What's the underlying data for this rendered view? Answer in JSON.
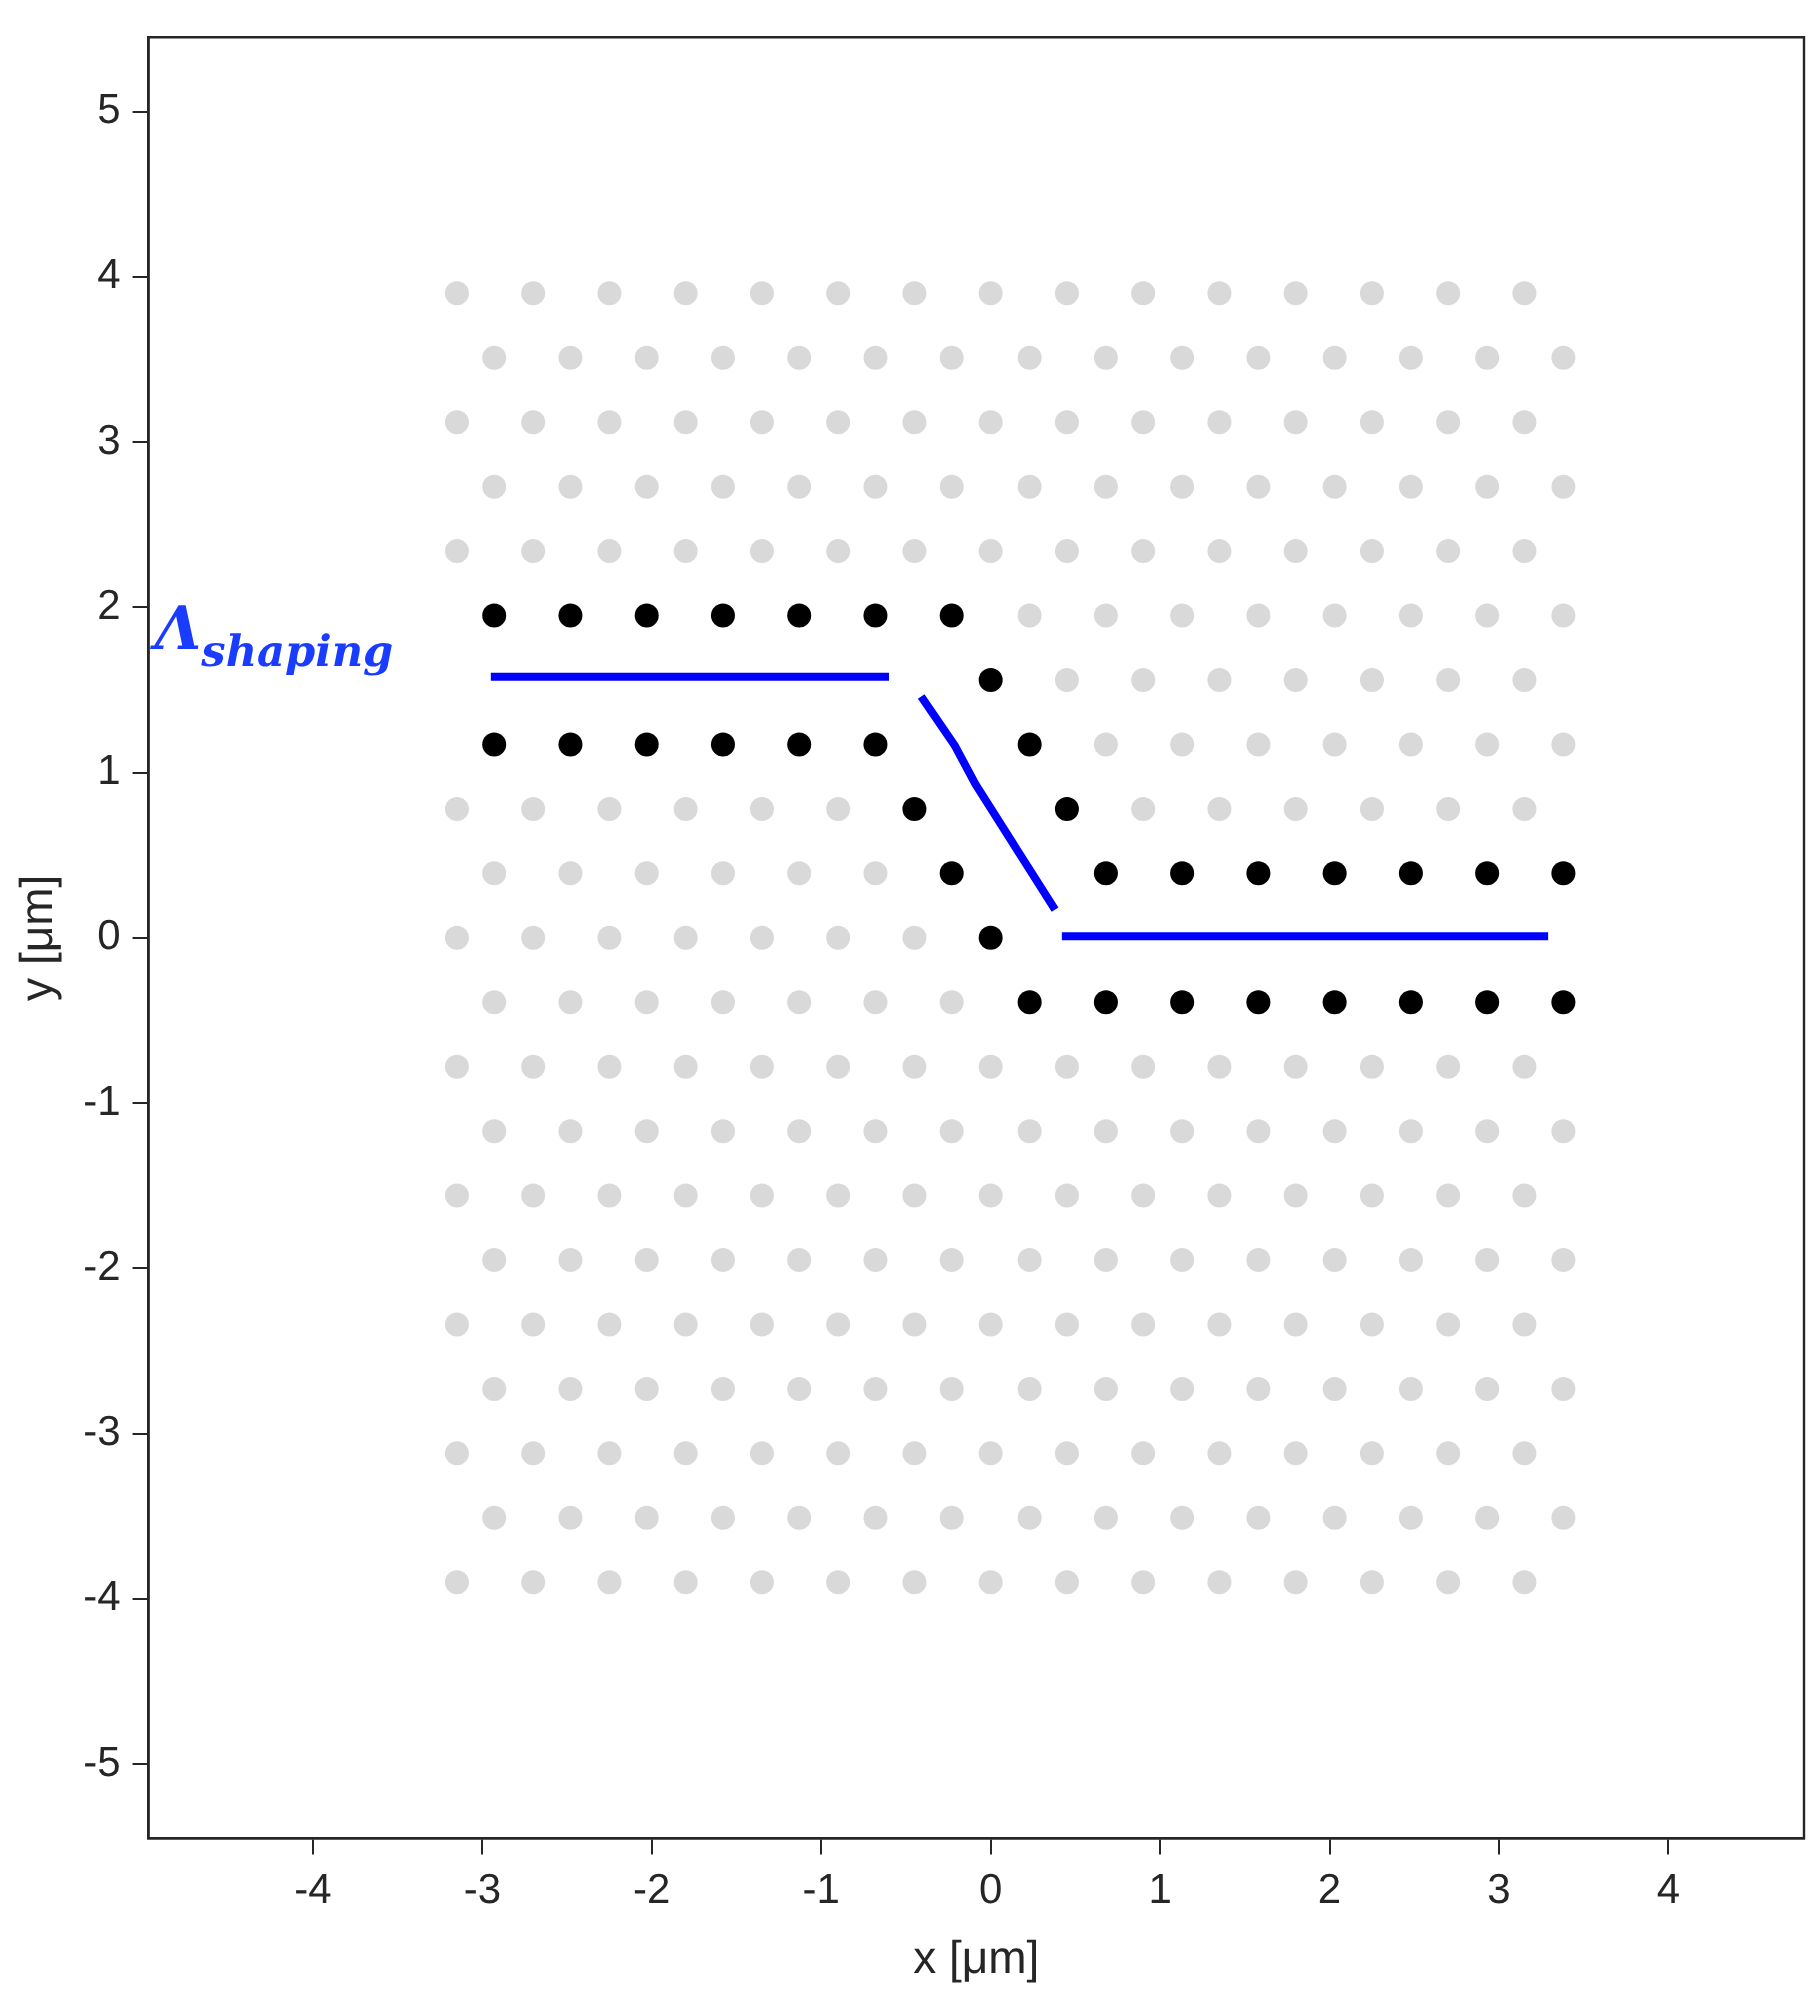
{
  "chart_data": {
    "type": "scatter",
    "xlabel": "x [μm]",
    "ylabel": "y [μm]",
    "xlim": [
      -4.97,
      4.8
    ],
    "ylim": [
      -5.45,
      5.45
    ],
    "xticks": [
      -4,
      -3,
      -2,
      -1,
      0,
      1,
      2,
      3,
      4
    ],
    "yticks": [
      -5,
      -4,
      -3,
      -2,
      -1,
      0,
      1,
      2,
      3,
      4,
      5
    ],
    "grid": false,
    "legend": false,
    "marker": "circle",
    "annotations": [
      "Λ$_{shaping}$"
    ],
    "series": [
      {
        "color": "#d9d9d9",
        "x": [
          -3.15,
          -2.7,
          -2.25,
          -1.8,
          -1.35,
          -0.9,
          -0.45,
          0,
          0.45,
          0.9,
          1.35,
          1.8,
          2.25,
          2.7,
          3.15
        ],
        "values": [
          3.9,
          3.9,
          3.9,
          3.9,
          3.9,
          3.9,
          3.9,
          3.9,
          3.9,
          3.9,
          3.9,
          3.9,
          3.9,
          3.9,
          3.9
        ]
      },
      {
        "color": "#d9d9d9",
        "x": [
          -2.93,
          -2.48,
          -2.03,
          -1.58,
          -1.13,
          -0.68,
          -0.23,
          0.23,
          0.68,
          1.13,
          1.58,
          2.03,
          2.48,
          2.93,
          3.38
        ],
        "values": [
          3.51,
          3.51,
          3.51,
          3.51,
          3.51,
          3.51,
          3.51,
          3.51,
          3.51,
          3.51,
          3.51,
          3.51,
          3.51,
          3.51,
          3.51
        ]
      },
      {
        "color": "#d9d9d9",
        "x": [
          -3.15,
          -2.7,
          -2.25,
          -1.8,
          -1.35,
          -0.9,
          -0.45,
          0,
          0.45,
          0.9,
          1.35,
          1.8,
          2.25,
          2.7,
          3.15
        ],
        "values": [
          3.12,
          3.12,
          3.12,
          3.12,
          3.12,
          3.12,
          3.12,
          3.12,
          3.12,
          3.12,
          3.12,
          3.12,
          3.12,
          3.12,
          3.12
        ]
      },
      {
        "color": "#d9d9d9",
        "x": [
          -2.93,
          -2.48,
          -2.03,
          -1.58,
          -1.13,
          -0.68,
          -0.23,
          0.23,
          0.68,
          1.13,
          1.58,
          2.03,
          2.48,
          2.93,
          3.38
        ],
        "values": [
          2.73,
          2.73,
          2.73,
          2.73,
          2.73,
          2.73,
          2.73,
          2.73,
          2.73,
          2.73,
          2.73,
          2.73,
          2.73,
          2.73,
          2.73
        ]
      },
      {
        "color": "#d9d9d9",
        "x": [
          -3.15,
          -2.7,
          -2.25,
          -1.8,
          -1.35,
          -0.9,
          -0.45,
          0,
          0.45,
          0.9,
          1.35,
          1.8,
          2.25,
          2.7,
          3.15
        ],
        "values": [
          2.34,
          2.34,
          2.34,
          2.34,
          2.34,
          2.34,
          2.34,
          2.34,
          2.34,
          2.34,
          2.34,
          2.34,
          2.34,
          2.34,
          2.34
        ]
      },
      {
        "color": "#d9d9d9",
        "x": [
          0.23,
          0.68,
          1.13,
          1.58,
          2.03,
          2.48,
          2.93,
          3.38
        ],
        "values": [
          1.95,
          1.95,
          1.95,
          1.95,
          1.95,
          1.95,
          1.95,
          1.95
        ]
      },
      {
        "color": "#d9d9d9",
        "x": [
          0.45,
          0.9,
          1.35,
          1.8,
          2.25,
          2.7,
          3.15
        ],
        "values": [
          1.56,
          1.56,
          1.56,
          1.56,
          1.56,
          1.56,
          1.56
        ]
      },
      {
        "color": "#d9d9d9",
        "x": [
          0.68,
          1.13,
          1.58,
          2.03,
          2.48,
          2.93,
          3.38
        ],
        "values": [
          1.17,
          1.17,
          1.17,
          1.17,
          1.17,
          1.17,
          1.17
        ]
      },
      {
        "color": "#d9d9d9",
        "x": [
          -3.15,
          -2.7,
          -2.25,
          -1.8,
          -1.35,
          -0.9,
          0.9,
          1.35,
          1.8,
          2.25,
          2.7,
          3.15
        ],
        "values": [
          0.78,
          0.78,
          0.78,
          0.78,
          0.78,
          0.78,
          0.78,
          0.78,
          0.78,
          0.78,
          0.78,
          0.78
        ]
      },
      {
        "color": "#d9d9d9",
        "x": [
          -2.93,
          -2.48,
          -2.03,
          -1.58,
          -1.13,
          -0.68
        ],
        "values": [
          0.39,
          0.39,
          0.39,
          0.39,
          0.39,
          0.39
        ]
      },
      {
        "color": "#d9d9d9",
        "x": [
          -3.15,
          -2.7,
          -2.25,
          -1.8,
          -1.35,
          -0.9,
          -0.45
        ],
        "values": [
          0,
          0,
          0,
          0,
          0,
          0,
          0
        ]
      },
      {
        "color": "#d9d9d9",
        "x": [
          -2.93,
          -2.48,
          -2.03,
          -1.58,
          -1.13,
          -0.68,
          -0.23
        ],
        "values": [
          -0.39,
          -0.39,
          -0.39,
          -0.39,
          -0.39,
          -0.39,
          -0.39
        ]
      },
      {
        "color": "#d9d9d9",
        "x": [
          -3.15,
          -2.7,
          -2.25,
          -1.8,
          -1.35,
          -0.9,
          -0.45,
          0,
          0.45,
          0.9,
          1.35,
          1.8,
          2.25,
          2.7,
          3.15
        ],
        "values": [
          -0.78,
          -0.78,
          -0.78,
          -0.78,
          -0.78,
          -0.78,
          -0.78,
          -0.78,
          -0.78,
          -0.78,
          -0.78,
          -0.78,
          -0.78,
          -0.78,
          -0.78
        ]
      },
      {
        "color": "#d9d9d9",
        "x": [
          -2.93,
          -2.48,
          -2.03,
          -1.58,
          -1.13,
          -0.68,
          -0.23,
          0.23,
          0.68,
          1.13,
          1.58,
          2.03,
          2.48,
          2.93,
          3.38
        ],
        "values": [
          -1.17,
          -1.17,
          -1.17,
          -1.17,
          -1.17,
          -1.17,
          -1.17,
          -1.17,
          -1.17,
          -1.17,
          -1.17,
          -1.17,
          -1.17,
          -1.17,
          -1.17
        ]
      },
      {
        "color": "#d9d9d9",
        "x": [
          -3.15,
          -2.7,
          -2.25,
          -1.8,
          -1.35,
          -0.9,
          -0.45,
          0,
          0.45,
          0.9,
          1.35,
          1.8,
          2.25,
          2.7,
          3.15
        ],
        "values": [
          -1.56,
          -1.56,
          -1.56,
          -1.56,
          -1.56,
          -1.56,
          -1.56,
          -1.56,
          -1.56,
          -1.56,
          -1.56,
          -1.56,
          -1.56,
          -1.56,
          -1.56
        ]
      },
      {
        "color": "#d9d9d9",
        "x": [
          -2.93,
          -2.48,
          -2.03,
          -1.58,
          -1.13,
          -0.68,
          -0.23,
          0.23,
          0.68,
          1.13,
          1.58,
          2.03,
          2.48,
          2.93,
          3.38
        ],
        "values": [
          -1.95,
          -1.95,
          -1.95,
          -1.95,
          -1.95,
          -1.95,
          -1.95,
          -1.95,
          -1.95,
          -1.95,
          -1.95,
          -1.95,
          -1.95,
          -1.95,
          -1.95
        ]
      },
      {
        "color": "#d9d9d9",
        "x": [
          -3.15,
          -2.7,
          -2.25,
          -1.8,
          -1.35,
          -0.9,
          -0.45,
          0,
          0.45,
          0.9,
          1.35,
          1.8,
          2.25,
          2.7,
          3.15
        ],
        "values": [
          -2.34,
          -2.34,
          -2.34,
          -2.34,
          -2.34,
          -2.34,
          -2.34,
          -2.34,
          -2.34,
          -2.34,
          -2.34,
          -2.34,
          -2.34,
          -2.34,
          -2.34
        ]
      },
      {
        "color": "#d9d9d9",
        "x": [
          -2.93,
          -2.48,
          -2.03,
          -1.58,
          -1.13,
          -0.68,
          -0.23,
          0.23,
          0.68,
          1.13,
          1.58,
          2.03,
          2.48,
          2.93,
          3.38
        ],
        "values": [
          -2.73,
          -2.73,
          -2.73,
          -2.73,
          -2.73,
          -2.73,
          -2.73,
          -2.73,
          -2.73,
          -2.73,
          -2.73,
          -2.73,
          -2.73,
          -2.73,
          -2.73
        ]
      },
      {
        "color": "#d9d9d9",
        "x": [
          -3.15,
          -2.7,
          -2.25,
          -1.8,
          -1.35,
          -0.9,
          -0.45,
          0,
          0.45,
          0.9,
          1.35,
          1.8,
          2.25,
          2.7,
          3.15
        ],
        "values": [
          -3.12,
          -3.12,
          -3.12,
          -3.12,
          -3.12,
          -3.12,
          -3.12,
          -3.12,
          -3.12,
          -3.12,
          -3.12,
          -3.12,
          -3.12,
          -3.12,
          -3.12
        ]
      },
      {
        "color": "#d9d9d9",
        "x": [
          -2.93,
          -2.48,
          -2.03,
          -1.58,
          -1.13,
          -0.68,
          -0.23,
          0.23,
          0.68,
          1.13,
          1.58,
          2.03,
          2.48,
          2.93,
          3.38
        ],
        "values": [
          -3.51,
          -3.51,
          -3.51,
          -3.51,
          -3.51,
          -3.51,
          -3.51,
          -3.51,
          -3.51,
          -3.51,
          -3.51,
          -3.51,
          -3.51,
          -3.51,
          -3.51
        ]
      },
      {
        "color": "#d9d9d9",
        "x": [
          -3.15,
          -2.7,
          -2.25,
          -1.8,
          -1.35,
          -0.9,
          -0.45,
          0,
          0.45,
          0.9,
          1.35,
          1.8,
          2.25,
          2.7,
          3.15
        ],
        "values": [
          -3.9,
          -3.9,
          -3.9,
          -3.9,
          -3.9,
          -3.9,
          -3.9,
          -3.9,
          -3.9,
          -3.9,
          -3.9,
          -3.9,
          -3.9,
          -3.9,
          -3.9
        ]
      },
      {
        "color": "#000000",
        "x": [
          -2.93,
          -2.48,
          -2.03,
          -1.58,
          -1.13,
          -0.68,
          -0.23,
          0,
          -2.93,
          -2.48,
          -2.03,
          -1.58,
          -1.13,
          -0.68,
          0.23,
          -0.45,
          0.45,
          -0.23,
          0.68,
          1.13,
          1.58,
          2.03,
          2.48,
          2.93,
          3.38,
          0,
          0.23,
          0.68,
          1.13,
          1.58,
          2.03,
          2.48,
          2.93,
          3.38
        ],
        "values": [
          1.95,
          1.95,
          1.95,
          1.95,
          1.95,
          1.95,
          1.95,
          1.56,
          1.17,
          1.17,
          1.17,
          1.17,
          1.17,
          1.17,
          1.17,
          0.78,
          0.78,
          0.39,
          0.39,
          0.39,
          0.39,
          0.39,
          0.39,
          0.39,
          0.39,
          0,
          -0.39,
          -0.39,
          -0.39,
          -0.39,
          -0.39,
          -0.39,
          -0.39,
          -0.39
        ]
      },
      {
        "type": "line",
        "marker": "none",
        "color": "#0000ff",
        "x": [
          -2.95,
          -0.6,
          -0.5,
          -0.41,
          -0.21,
          -0.09,
          0.38,
          0.4,
          0.42,
          3.29
        ],
        "values": [
          1.58,
          1.58,
          null,
          1.46,
          1.16,
          0.93,
          0.17,
          null,
          0.01,
          0.01
        ]
      }
    ]
  }
}
